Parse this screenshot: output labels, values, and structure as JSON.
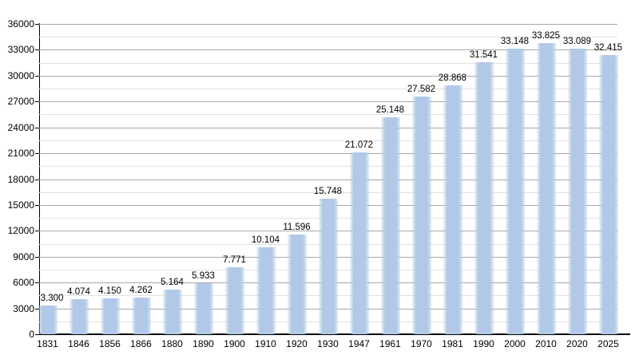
{
  "chart_data": {
    "type": "bar",
    "title": "",
    "xlabel": "",
    "ylabel": "",
    "categories": [
      "1831",
      "1846",
      "1856",
      "1866",
      "1880",
      "1890",
      "1900",
      "1910",
      "1920",
      "1930",
      "1947",
      "1961",
      "1970",
      "1981",
      "1990",
      "2000",
      "2010",
      "2020",
      "2025"
    ],
    "values": [
      3300,
      4074,
      4150,
      4262,
      5164,
      5933,
      7771,
      10104,
      11596,
      15748,
      21072,
      25148,
      27582,
      28868,
      31541,
      33148,
      33825,
      33089,
      32415
    ],
    "value_labels": [
      "3.300",
      "4.074",
      "4.150",
      "4.262",
      "5.164",
      "5.933",
      "7.771",
      "10.104",
      "11.596",
      "15.748",
      "21.072",
      "25.148",
      "27.582",
      "28.868",
      "31.541",
      "33.148",
      "33.825",
      "33.089",
      "32.415"
    ],
    "ylim": [
      0,
      36000
    ],
    "y_major_step": 3000,
    "y_minor_step": 1500,
    "y_tick_labels": [
      "0",
      "3000",
      "6000",
      "9000",
      "12000",
      "15000",
      "18000",
      "21000",
      "24000",
      "27000",
      "30000",
      "33000",
      "36000"
    ],
    "grid": "on",
    "legend": "none",
    "colors": {
      "bar_fill": "#b1c9e6",
      "bar_edge_fade": "rgba(177,201,230,0.15)",
      "major_gridline": "#a9a9a9",
      "minor_gridline": "#e2e2e2",
      "axis": "#000000",
      "text": "#000000",
      "background": "#ffffff"
    }
  }
}
